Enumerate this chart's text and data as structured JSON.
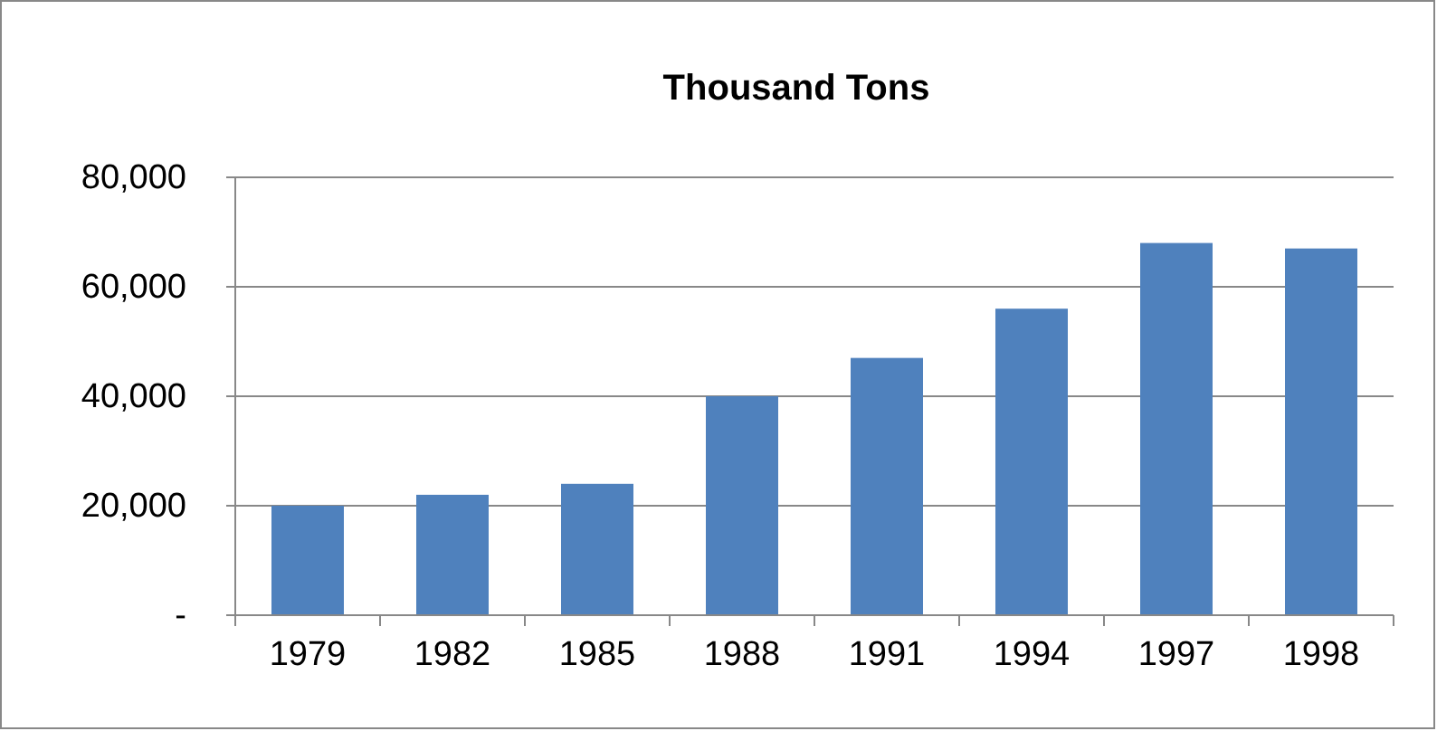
{
  "chart_data": {
    "type": "bar",
    "title": "Thousand Tons",
    "categories": [
      "1979",
      "1982",
      "1985",
      "1988",
      "1991",
      "1994",
      "1997",
      "1998"
    ],
    "values": [
      20000,
      22000,
      24000,
      40000,
      47000,
      56000,
      68000,
      67000
    ],
    "color": "#4f81bd",
    "ylim": [
      0,
      80000
    ],
    "yticks": [
      {
        "value": 0,
        "label": "-"
      },
      {
        "value": 20000,
        "label": "20,000"
      },
      {
        "value": 40000,
        "label": "40,000"
      },
      {
        "value": 60000,
        "label": "60,000"
      },
      {
        "value": 80000,
        "label": "80,000"
      }
    ],
    "grid": "y"
  }
}
